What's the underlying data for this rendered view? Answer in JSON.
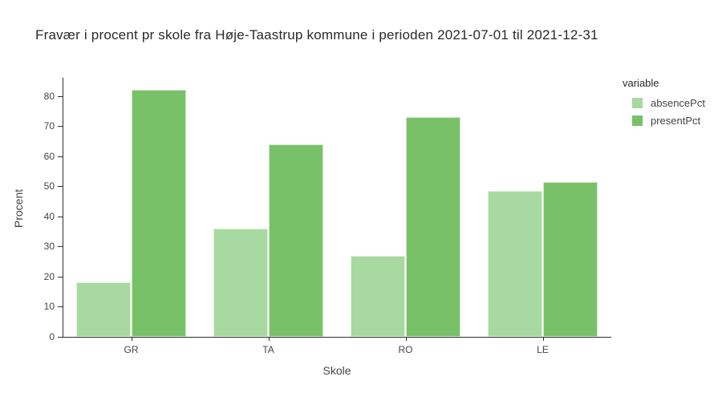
{
  "chart_data": {
    "type": "bar",
    "mode": "grouped",
    "title": "Fravær i procent pr skole fra Høje-Taastrup kommune i perioden 2021-07-01 til 2021-12-31",
    "xlabel": "Skole",
    "ylabel": "Procent",
    "categories": [
      "GR",
      "TA",
      "RO",
      "LE"
    ],
    "series": [
      {
        "name": "absencePct",
        "color": "#A8D9A0",
        "values": [
          18,
          36,
          27,
          48.5
        ]
      },
      {
        "name": "presentPct",
        "color": "#78C168",
        "values": [
          82,
          64,
          73,
          51.5
        ]
      }
    ],
    "legend_title": "variable",
    "legend_position": "top-right",
    "ylim": [
      0,
      86
    ],
    "yticks": [
      0,
      10,
      20,
      30,
      40,
      50,
      60,
      70,
      80
    ],
    "grid": false,
    "background": "#ffffff"
  }
}
